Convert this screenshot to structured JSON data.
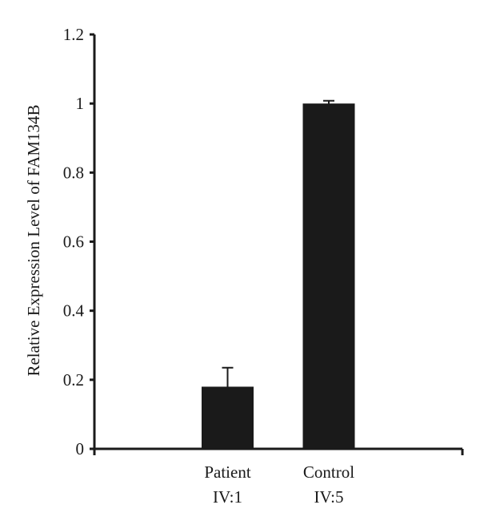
{
  "chart_data": {
    "type": "bar",
    "title": "",
    "xlabel": "",
    "ylabel": "Relative Expression Level of FAM134B",
    "ylim": [
      0,
      1.2
    ],
    "yticks": [
      "0",
      "0.2",
      "0.4",
      "0.6",
      "0.8",
      "1",
      "1.2"
    ],
    "ytick_values": [
      0,
      0.2,
      0.4,
      0.6,
      0.8,
      1.0,
      1.2
    ],
    "categories": [
      {
        "line1": "Patient",
        "line2": "IV:1"
      },
      {
        "line1": "Control",
        "line2": "IV:5"
      }
    ],
    "values": [
      0.18,
      1.0
    ],
    "errors": [
      0.055,
      0.008
    ],
    "grid": false,
    "bar_color": "#1a1a1a",
    "axis_color": "#1a1a1a"
  }
}
